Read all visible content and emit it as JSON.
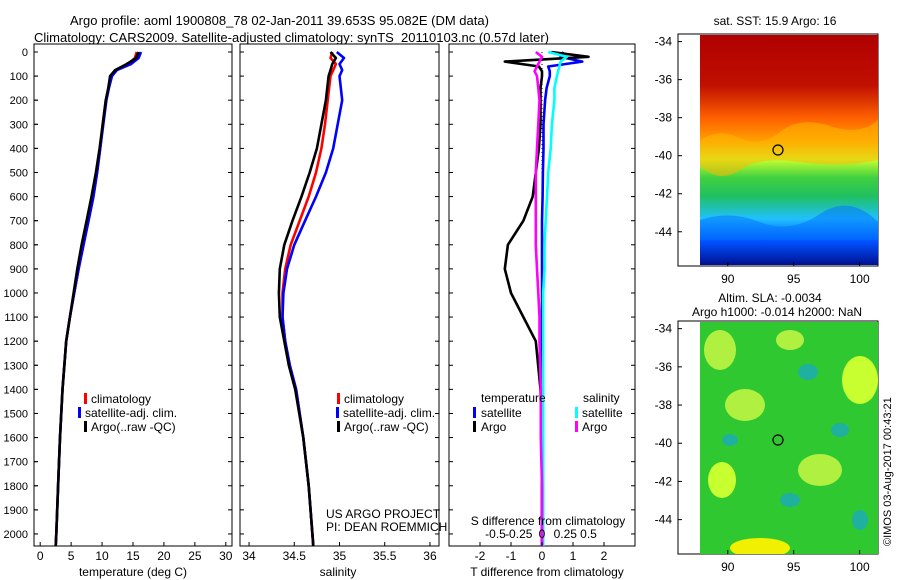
{
  "header": {
    "line1": "Argo profile: aoml 1900808_78 02-Jan-2011 39.653S 95.082E (DM data)",
    "line2": "Climatology: CARS2009. Satellite-adjusted climatology: synTS_20110103.nc (0.57d later)"
  },
  "colors": {
    "climatology": "#ff0000",
    "satellite": "#0000ff",
    "argo": "#000000",
    "salinity_satellite": "#00ffff",
    "salinity_argo": "#ff00ff"
  },
  "depth_ticks": [
    "0",
    "100",
    "200",
    "300",
    "400",
    "500",
    "600",
    "700",
    "800",
    "900",
    "1000",
    "1100",
    "1200",
    "1300",
    "1400",
    "1500",
    "1600",
    "1700",
    "1800",
    "1900",
    "2000"
  ],
  "legend_labels": {
    "climatology": "climatology",
    "satellite": "satellite-adj. clim.",
    "argo": "Argo(..raw -QC)"
  },
  "diff_legend": {
    "temperature_title": "temperature",
    "salinity_title": "salinity",
    "satellite": "satellite",
    "argo": "Argo"
  },
  "project": {
    "line1": "US ARGO PROJECT",
    "line2": "PI: DEAN ROEMMICH"
  },
  "sst_map": {
    "title": "sat. SST: 15.9 Argo: 16",
    "yticks": [
      "-34",
      "-36",
      "-38",
      "-40",
      "-42",
      "-44"
    ],
    "xticks": [
      "90",
      "95",
      "100"
    ]
  },
  "sla_map": {
    "title1": "Altim. SLA: -0.0034",
    "title2": "Argo h1000: -0.014 h2000: NaN",
    "yticks": [
      "-34",
      "-36",
      "-38",
      "-40",
      "-42",
      "-44"
    ],
    "xticks": [
      "90",
      "95",
      "100"
    ]
  },
  "footer": {
    "credit": "©IMOS 03-Aug-2017 00:43:21"
  },
  "chart_data": [
    {
      "type": "line",
      "xlabel": "temperature (deg C)",
      "ylabel": "",
      "xlim": [
        -1,
        31
      ],
      "ylim": [
        2050,
        0
      ],
      "xticks": [
        "0",
        "5",
        "10",
        "15",
        "20",
        "25",
        "30"
      ],
      "y": [
        0,
        25,
        50,
        75,
        100,
        150,
        200,
        300,
        400,
        500,
        600,
        700,
        800,
        900,
        1000,
        1100,
        1200,
        1400,
        1600,
        1800,
        2000,
        2050
      ],
      "series": [
        {
          "name": "climatology",
          "values": [
            15.6,
            15.3,
            14.3,
            12.2,
            11.4,
            11.0,
            10.6,
            10.1,
            9.7,
            9.2,
            8.6,
            7.8,
            7.0,
            6.2,
            5.5,
            4.8,
            4.2,
            3.6,
            3.2,
            2.9,
            2.6,
            2.5
          ]
        },
        {
          "name": "satellite-adj. clim.",
          "values": [
            16.3,
            15.9,
            14.7,
            12.4,
            11.6,
            11.1,
            10.7,
            10.2,
            9.7,
            9.2,
            8.6,
            7.8,
            7.0,
            6.2,
            5.5,
            4.8,
            4.2,
            3.6,
            3.2,
            2.9,
            2.6,
            2.5
          ]
        },
        {
          "name": "Argo(..raw -QC)",
          "values": [
            15.9,
            15.5,
            14.0,
            12.1,
            11.3,
            11.0,
            10.6,
            10.1,
            9.6,
            9.0,
            8.3,
            7.5,
            6.7,
            6.0,
            5.4,
            4.8,
            4.2,
            3.6,
            3.2,
            2.9,
            2.6,
            2.5
          ]
        }
      ]
    },
    {
      "type": "line",
      "xlabel": "salinity",
      "ylabel": "",
      "xlim": [
        33.9,
        36.1
      ],
      "ylim": [
        2050,
        0
      ],
      "xticks": [
        "34",
        "34.5",
        "35",
        "35.5",
        "36"
      ],
      "y": [
        0,
        25,
        50,
        75,
        100,
        200,
        300,
        400,
        500,
        600,
        700,
        800,
        900,
        1000,
        1100,
        1200,
        1300,
        1400,
        1600,
        1800,
        2000,
        2050
      ],
      "series": [
        {
          "name": "climatology",
          "values": [
            34.92,
            34.9,
            34.96,
            34.93,
            34.9,
            34.87,
            34.84,
            34.8,
            34.74,
            34.66,
            34.56,
            34.46,
            34.4,
            34.37,
            34.37,
            34.4,
            34.45,
            34.52,
            34.6,
            34.66,
            34.7,
            34.71
          ]
        },
        {
          "name": "satellite-adj. clim.",
          "values": [
            34.97,
            35.05,
            35.0,
            35.03,
            35.0,
            35.03,
            34.98,
            34.93,
            34.85,
            34.74,
            34.62,
            34.5,
            34.42,
            34.38,
            34.37,
            34.4,
            34.45,
            34.52,
            34.6,
            34.66,
            34.7,
            34.71
          ]
        },
        {
          "name": "Argo(..raw -QC)",
          "values": [
            34.9,
            34.96,
            34.92,
            34.9,
            34.88,
            34.85,
            34.8,
            34.75,
            34.67,
            34.58,
            34.48,
            34.39,
            34.34,
            34.33,
            34.34,
            34.39,
            34.44,
            34.51,
            34.6,
            34.66,
            34.7,
            34.71
          ]
        }
      ]
    },
    {
      "type": "line",
      "xlabel": "T difference from climatology",
      "xlabel_top": "S difference from climatology",
      "ylabel": "",
      "xlim": [
        -3,
        3
      ],
      "ylim": [
        2050,
        0
      ],
      "xticks": [
        "-2",
        "-1",
        "0",
        "1",
        "2"
      ],
      "xticks_top": [
        "-0.5",
        "-0.25",
        "0",
        "0.25",
        "0.5"
      ],
      "y": [
        0,
        20,
        40,
        60,
        80,
        100,
        150,
        200,
        300,
        400,
        500,
        600,
        700,
        800,
        900,
        1000,
        1100,
        1200,
        1400,
        1600,
        1800,
        2000,
        2050
      ],
      "series": [
        {
          "name": "temperature satellite",
          "values": [
            0.7,
            0.6,
            1.3,
            0.2,
            0.25,
            0.25,
            0.15,
            0.1,
            0.05,
            0.05,
            0.03,
            0.02,
            0.0,
            0.0,
            0.0,
            0.0,
            0.0,
            0.0,
            0.0,
            0.0,
            0.0,
            0.0,
            0.0
          ]
        },
        {
          "name": "temperature Argo",
          "values": [
            0.3,
            1.5,
            -1.2,
            -0.1,
            0.0,
            0.0,
            -0.05,
            -0.05,
            -0.05,
            -0.1,
            -0.2,
            -0.3,
            -0.6,
            -1.1,
            -1.2,
            -1.0,
            -0.6,
            -0.2,
            -0.05,
            0.0,
            0.0,
            0.0,
            0.0
          ]
        },
        {
          "name": "salinity satellite",
          "values": [
            0.05,
            0.2,
            0.15,
            0.14,
            0.13,
            0.12,
            0.1,
            0.1,
            0.08,
            0.07,
            0.05,
            0.04,
            0.03,
            0.02,
            0.02,
            0.01,
            0.01,
            0.01,
            0.01,
            0.01,
            0.01,
            0.01,
            0.01
          ]
        },
        {
          "name": "salinity Argo",
          "values": [
            -0.05,
            0.0,
            -0.02,
            -0.04,
            -0.06,
            -0.04,
            -0.03,
            -0.02,
            -0.03,
            -0.04,
            -0.05,
            -0.05,
            -0.05,
            -0.05,
            -0.04,
            -0.03,
            -0.02,
            -0.02,
            -0.01,
            -0.01,
            0.0,
            0.0,
            0.0
          ]
        }
      ]
    }
  ]
}
